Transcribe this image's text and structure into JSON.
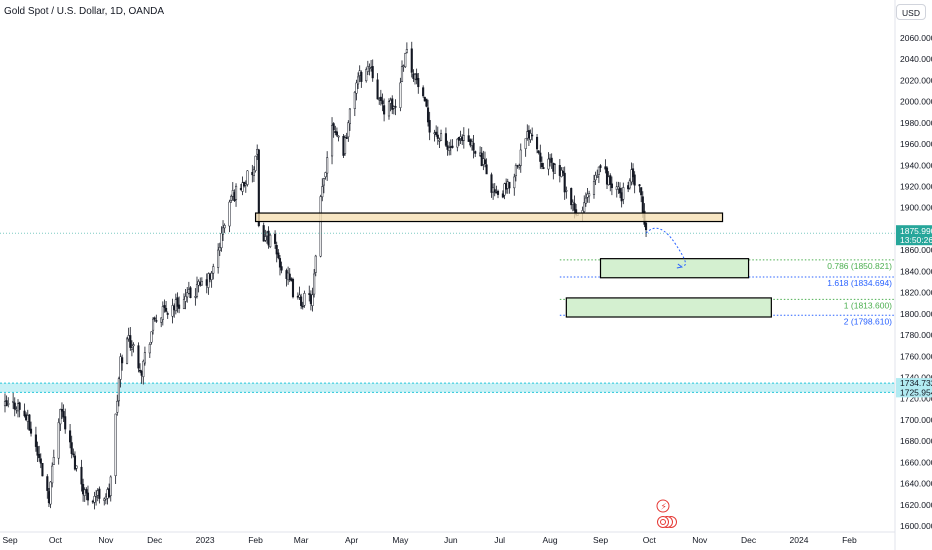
{
  "title": "Gold Spot / U.S. Dollar, 1D, OANDA",
  "currency": "USD",
  "last_price": "1875.990",
  "countdown": "13:50:26",
  "colors": {
    "up": "#26a69a",
    "down": "#131722",
    "candle_body": "#131722",
    "last_price": "#26a69a",
    "resistance_zone": "#f5deb3",
    "target_zone": "#d4f0d0",
    "support_band": "#b2ebf2",
    "fib_green": "#4caf50",
    "fib_blue": "#2962ff"
  },
  "chart_data": {
    "type": "candlestick",
    "symbol": "XAUUSD",
    "timeframe": "1D",
    "exchange": "OANDA",
    "x_tick_labels": [
      "Sep",
      "Oct",
      "Nov",
      "Dec",
      "2023",
      "Feb",
      "Mar",
      "Apr",
      "May",
      "Jun",
      "Jul",
      "Aug",
      "Sep",
      "Oct",
      "Nov",
      "Dec",
      "2024",
      "Feb"
    ],
    "x_tick_dates": [
      "2022-09-01",
      "2022-10-01",
      "2022-11-01",
      "2022-12-01",
      "2023-01-01",
      "2023-02-01",
      "2023-03-01",
      "2023-04-01",
      "2023-05-01",
      "2023-06-01",
      "2023-07-01",
      "2023-08-01",
      "2023-09-01",
      "2023-10-01",
      "2023-11-01",
      "2023-12-01",
      "2024-01-01",
      "2024-02-01"
    ],
    "y_tick_labels": [
      "2060.000",
      "2040.000",
      "2020.000",
      "2000.000",
      "1980.000",
      "1960.000",
      "1940.000",
      "1920.000",
      "1900.000",
      "1880.000",
      "1860.000",
      "1840.000",
      "1820.000",
      "1800.000",
      "1780.000",
      "1760.000",
      "1740.000",
      "1720.000",
      "1700.000",
      "1680.000",
      "1660.000",
      "1640.000",
      "1620.000",
      "1600.000"
    ],
    "ylim": [
      1597,
      2075
    ],
    "xlim": [
      "2022-08-31",
      "2024-02-29"
    ],
    "close_path": [
      [
        "2022-08-31",
        1712
      ],
      [
        "2022-09-07",
        1715
      ],
      [
        "2022-09-13",
        1702
      ],
      [
        "2022-09-19",
        1675
      ],
      [
        "2022-09-27",
        1628
      ],
      [
        "2022-10-04",
        1715
      ],
      [
        "2022-10-11",
        1668
      ],
      [
        "2022-10-20",
        1628
      ],
      [
        "2022-11-03",
        1630
      ],
      [
        "2022-11-10",
        1755
      ],
      [
        "2022-11-15",
        1778
      ],
      [
        "2022-11-23",
        1748
      ],
      [
        "2022-12-01",
        1795
      ],
      [
        "2022-12-13",
        1808
      ],
      [
        "2022-12-21",
        1815
      ],
      [
        "2023-01-05",
        1835
      ],
      [
        "2023-01-17",
        1910
      ],
      [
        "2023-01-31",
        1935
      ],
      [
        "2023-02-02",
        1950
      ],
      [
        "2023-02-03",
        1878
      ],
      [
        "2023-02-10",
        1870
      ],
      [
        "2023-02-17",
        1845
      ],
      [
        "2023-02-27",
        1812
      ],
      [
        "2023-03-08",
        1815
      ],
      [
        "2023-03-13",
        1905
      ],
      [
        "2023-03-20",
        1982
      ],
      [
        "2023-03-27",
        1955
      ],
      [
        "2023-04-04",
        2020
      ],
      [
        "2023-04-13",
        2035
      ],
      [
        "2023-04-19",
        1995
      ],
      [
        "2023-04-28",
        1995
      ],
      [
        "2023-05-04",
        2050
      ],
      [
        "2023-05-12",
        2015
      ],
      [
        "2023-05-19",
        1978
      ],
      [
        "2023-05-30",
        1955
      ],
      [
        "2023-06-09",
        1962
      ],
      [
        "2023-06-16",
        1958
      ],
      [
        "2023-06-29",
        1910
      ],
      [
        "2023-07-06",
        1918
      ],
      [
        "2023-07-20",
        1975
      ],
      [
        "2023-07-27",
        1945
      ],
      [
        "2023-08-07",
        1935
      ],
      [
        "2023-08-17",
        1890
      ],
      [
        "2023-08-28",
        1920
      ],
      [
        "2023-09-01",
        1940
      ],
      [
        "2023-09-08",
        1920
      ],
      [
        "2023-09-14",
        1912
      ],
      [
        "2023-09-20",
        1930
      ],
      [
        "2023-09-25",
        1915
      ],
      [
        "2023-09-29",
        1876
      ]
    ],
    "annotations": {
      "resistance_zone": {
        "from": "2023-02-01",
        "to": "2023-11-15",
        "low": 1887,
        "high": 1895
      },
      "target_zone_1": {
        "from": "2023-09-01",
        "to": "2023-12-01",
        "low": 1834,
        "high": 1852
      },
      "target_zone_2": {
        "from": "2023-08-11",
        "to": "2023-12-15",
        "low": 1797,
        "high": 1815
      },
      "support_band": {
        "low": 1725.954,
        "high": 1734.732
      },
      "projection_path": [
        [
          "2023-09-29",
          1876
        ],
        [
          "2023-10-07",
          1889
        ],
        [
          "2023-10-17",
          1866
        ],
        [
          "2023-10-21",
          1846
        ]
      ]
    },
    "fib_levels": [
      {
        "label": "0.786 (1850.821)",
        "value": 1850.821,
        "color": "green"
      },
      {
        "label": "1.618 (1834.694)",
        "value": 1834.694,
        "color": "blue"
      },
      {
        "label": "1 (1813.600)",
        "value": 1813.6,
        "color": "green"
      },
      {
        "label": "2 (1798.610)",
        "value": 1798.61,
        "color": "blue"
      }
    ],
    "zone_tags": [
      "1734.732",
      "1725.954"
    ],
    "last_price": 1875.99
  }
}
